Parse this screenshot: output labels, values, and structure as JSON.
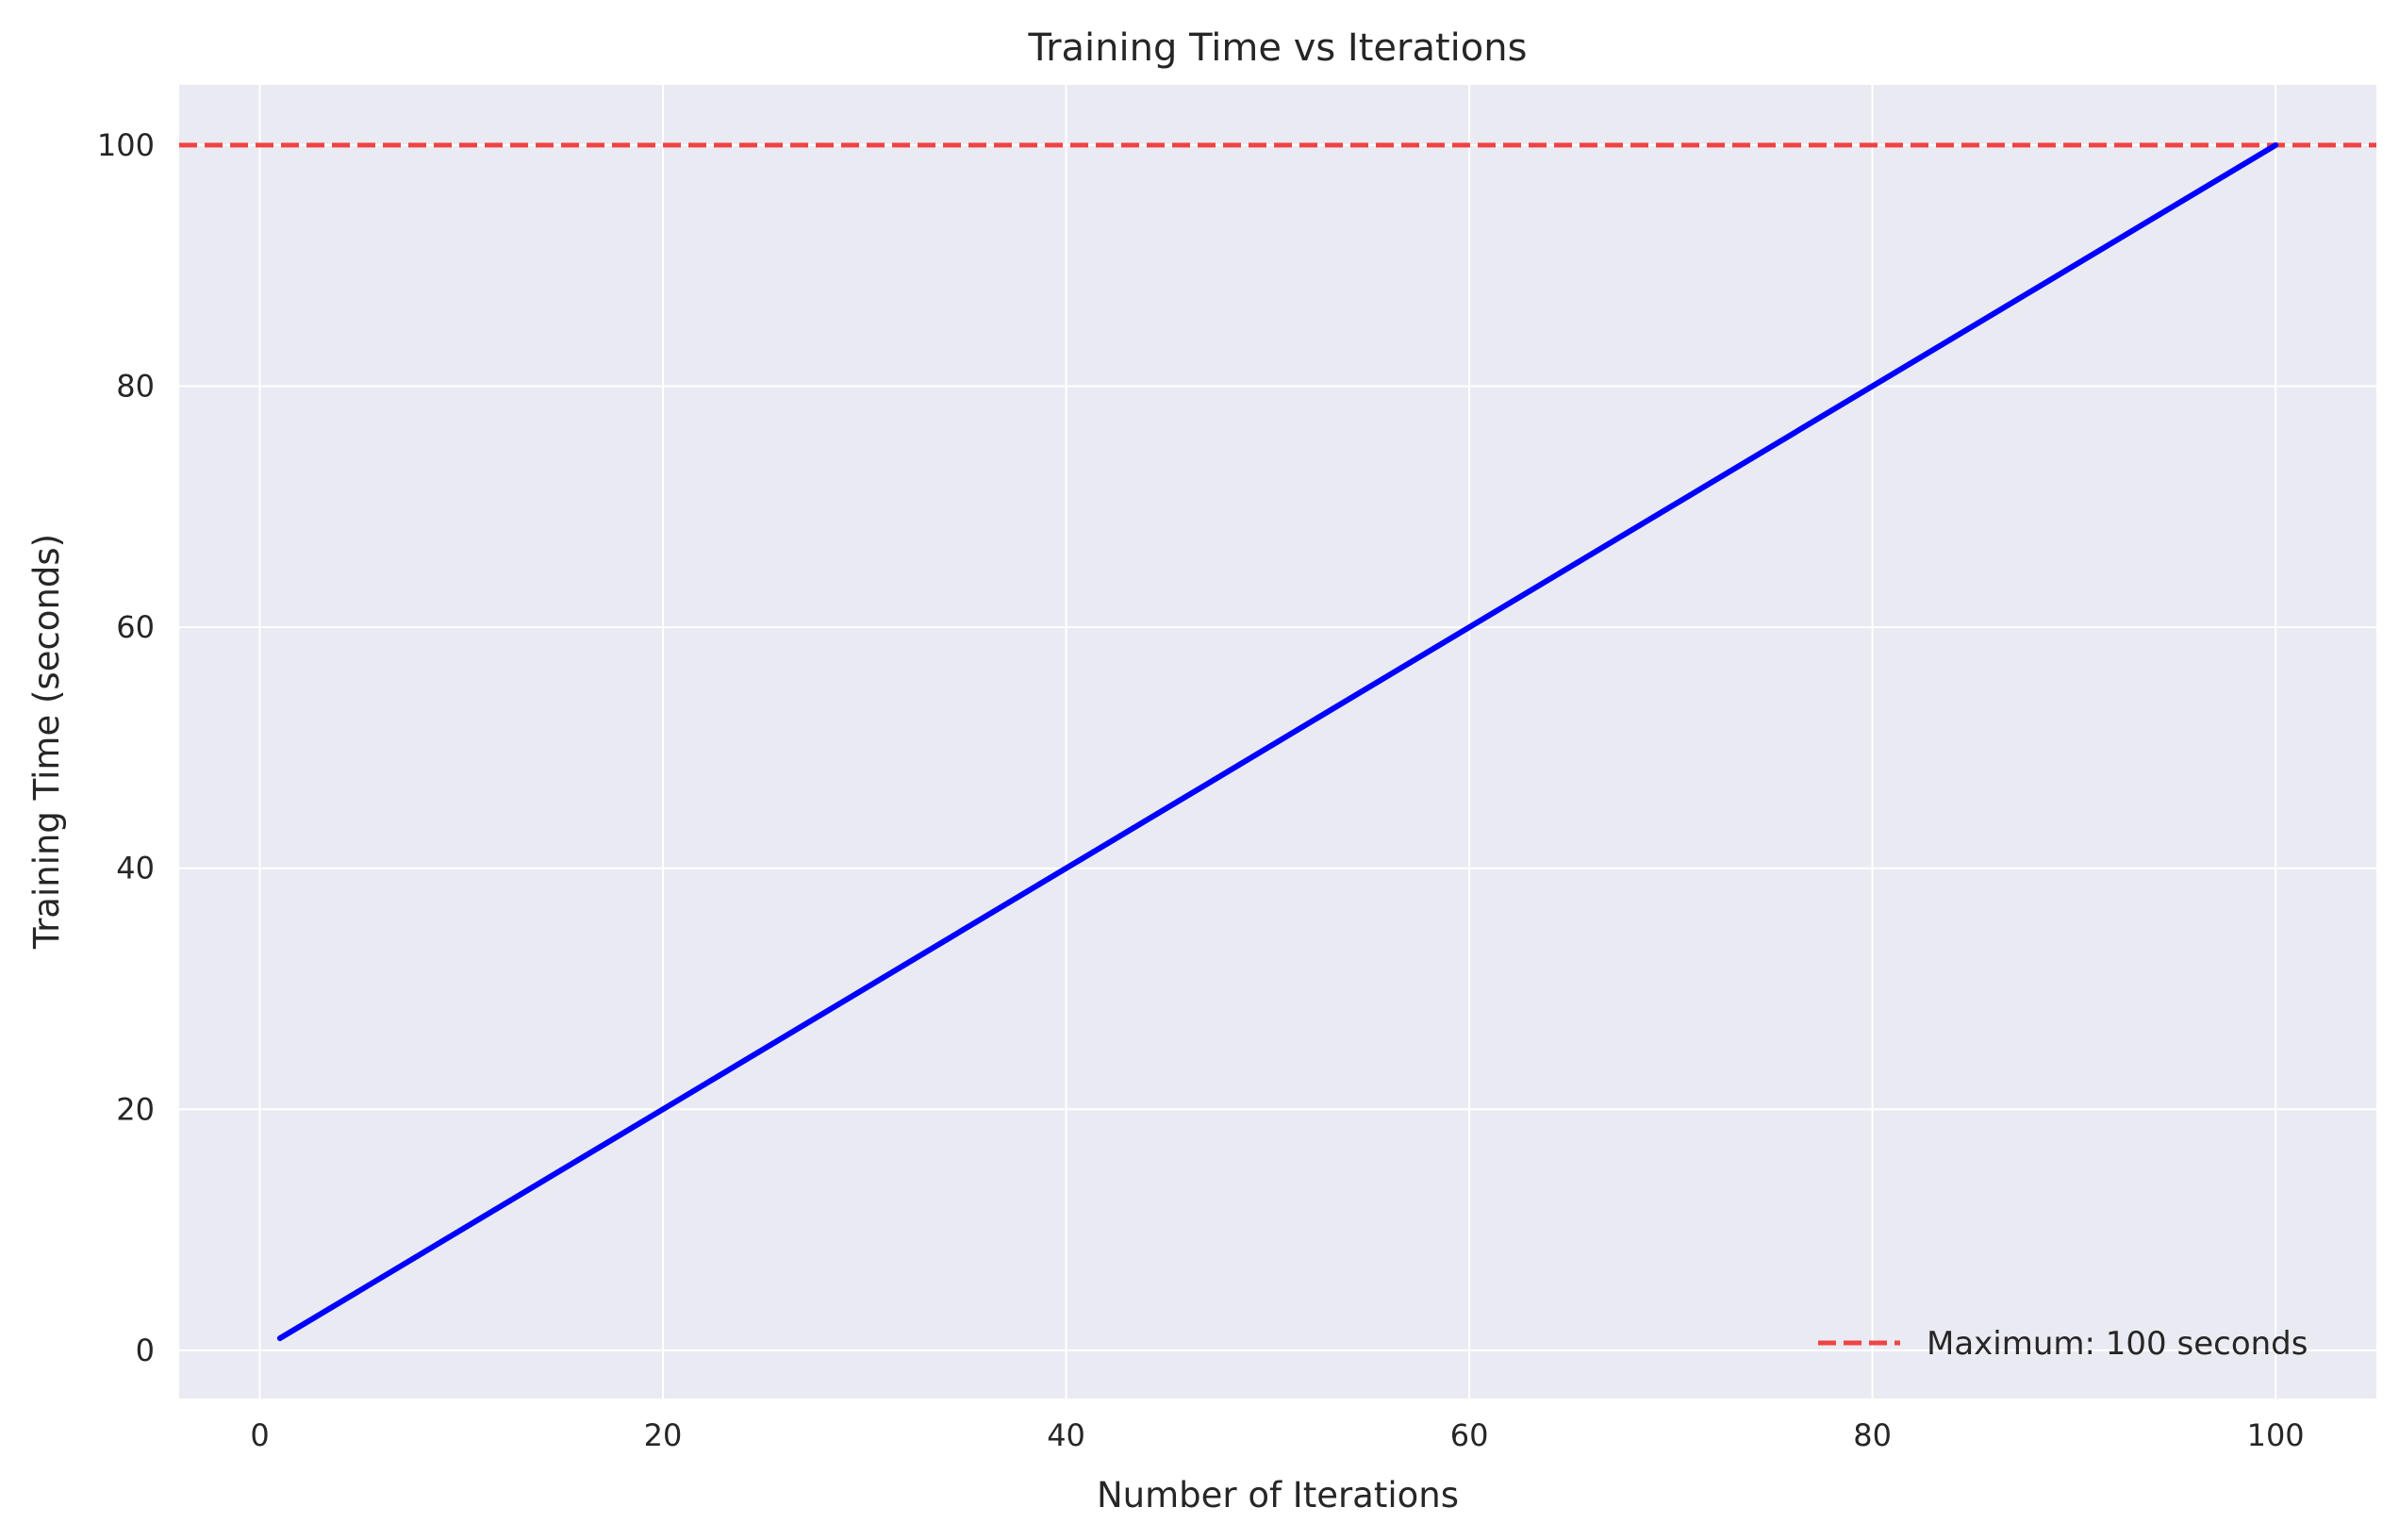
{
  "chart_data": {
    "type": "line",
    "title": "Training Time vs Iterations",
    "xlabel": "Number of Iterations",
    "ylabel": "Training Time (seconds)",
    "xlim": [
      -4,
      105
    ],
    "ylim": [
      -4,
      105
    ],
    "xticks": [
      0,
      20,
      40,
      60,
      80,
      100
    ],
    "yticks": [
      0,
      20,
      40,
      60,
      80,
      100
    ],
    "grid": true,
    "legend_position": "lower-right",
    "background_color": "#eaeaf2",
    "grid_color": "#ffffff",
    "series": [
      {
        "color": "#0000ff",
        "x": [
          1,
          100
        ],
        "y": [
          1,
          100
        ]
      }
    ],
    "reference_lines": [
      {
        "name": "Maximum: 100 seconds",
        "orientation": "horizontal",
        "y": 100,
        "style": "dashed",
        "color": "#ef4444"
      }
    ]
  }
}
